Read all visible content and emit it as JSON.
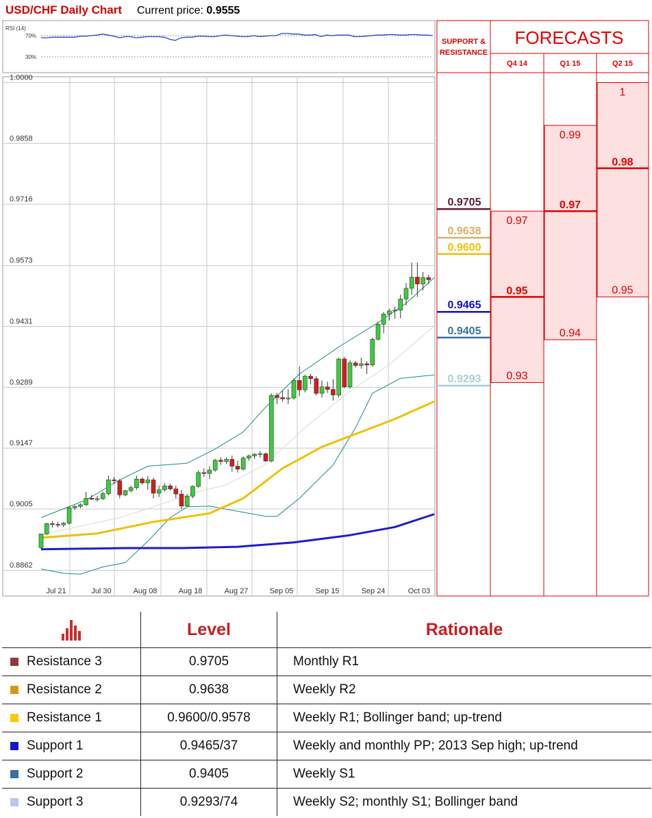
{
  "header": {
    "title": "USD/CHF Daily Chart",
    "current_label": "Current price:",
    "current_value": "0.9555"
  },
  "rsi": {
    "label": "RSI (14)",
    "upper": "70%",
    "lower": "30%",
    "values": [
      66,
      66,
      67,
      67,
      67,
      67,
      67,
      69,
      69,
      70,
      71,
      73,
      71,
      69,
      66,
      68,
      68,
      66,
      67,
      68,
      68,
      68,
      67,
      63,
      61,
      66,
      67,
      67,
      69,
      69,
      68,
      68,
      70,
      71,
      70,
      69,
      68,
      68,
      70,
      68,
      69,
      70,
      70,
      74,
      74,
      73,
      73,
      71,
      71,
      72,
      68,
      71,
      70,
      71,
      71,
      71,
      68,
      68,
      69,
      70,
      71,
      71,
      72,
      72,
      71,
      71,
      72,
      72,
      71,
      71,
      70
    ]
  },
  "chart_data": {
    "type": "candlestick",
    "title": "USD/CHF Daily Chart",
    "y_ticks": [
      1.0,
      0.9858,
      0.9716,
      0.9573,
      0.9431,
      0.9289,
      0.9147,
      0.9005,
      0.8862
    ],
    "y_tick_labels": [
      "1.0000",
      "0.9858",
      "0.9716",
      "0.9573",
      "0.9431",
      "0.9289",
      "0.9147",
      "0.9005",
      "0.8862"
    ],
    "ylim": [
      0.8862,
      1.0
    ],
    "x_labels": [
      "Jul 21",
      "Jul 30",
      "Aug 08",
      "Aug 18",
      "Aug 27",
      "Sep 05",
      "Sep 15",
      "Sep 24",
      "Oct 03"
    ],
    "candles": [
      [
        0.8915,
        0.8947,
        0.8912,
        0.8947
      ],
      [
        0.8947,
        0.8973,
        0.8944,
        0.8971
      ],
      [
        0.8971,
        0.8977,
        0.8962,
        0.8969
      ],
      [
        0.8969,
        0.8975,
        0.8962,
        0.8968
      ],
      [
        0.8968,
        0.8975,
        0.8963,
        0.8972
      ],
      [
        0.8972,
        0.9011,
        0.8969,
        0.9008
      ],
      [
        0.9008,
        0.9014,
        0.9003,
        0.9011
      ],
      [
        0.9011,
        0.9018,
        0.9007,
        0.9015
      ],
      [
        0.9015,
        0.9045,
        0.9012,
        0.903
      ],
      [
        0.903,
        0.9038,
        0.9026,
        0.9028
      ],
      [
        0.9028,
        0.9036,
        0.9022,
        0.9029
      ],
      [
        0.9029,
        0.9046,
        0.9026,
        0.9041
      ],
      [
        0.9041,
        0.9083,
        0.9037,
        0.9073
      ],
      [
        0.9073,
        0.908,
        0.9063,
        0.9071
      ],
      [
        0.9071,
        0.9075,
        0.903,
        0.9038
      ],
      [
        0.9038,
        0.905,
        0.9035,
        0.9048
      ],
      [
        0.9048,
        0.906,
        0.9044,
        0.9055
      ],
      [
        0.9055,
        0.9083,
        0.905,
        0.9075
      ],
      [
        0.9075,
        0.9079,
        0.9062,
        0.9066
      ],
      [
        0.9066,
        0.9082,
        0.905,
        0.9073
      ],
      [
        0.9073,
        0.9078,
        0.903,
        0.9042
      ],
      [
        0.9042,
        0.906,
        0.9033,
        0.905
      ],
      [
        0.905,
        0.9065,
        0.9046,
        0.9059
      ],
      [
        0.9059,
        0.9064,
        0.9048,
        0.9052
      ],
      [
        0.9052,
        0.906,
        0.903,
        0.904
      ],
      [
        0.904,
        0.905,
        0.9005,
        0.9012
      ],
      [
        0.9012,
        0.904,
        0.901,
        0.9035
      ],
      [
        0.9035,
        0.906,
        0.903,
        0.9058
      ],
      [
        0.9058,
        0.9095,
        0.9054,
        0.909
      ],
      [
        0.909,
        0.91,
        0.908,
        0.9088
      ],
      [
        0.9088,
        0.9105,
        0.9075,
        0.9096
      ],
      [
        0.9096,
        0.9122,
        0.9092,
        0.9119
      ],
      [
        0.9119,
        0.9126,
        0.9108,
        0.9116
      ],
      [
        0.9116,
        0.9125,
        0.911,
        0.9121
      ],
      [
        0.9121,
        0.913,
        0.9092,
        0.9105
      ],
      [
        0.9105,
        0.9118,
        0.909,
        0.9098
      ],
      [
        0.9098,
        0.9128,
        0.9095,
        0.9124
      ],
      [
        0.9124,
        0.9132,
        0.9118,
        0.9129
      ],
      [
        0.9129,
        0.9135,
        0.9122,
        0.9133
      ],
      [
        0.9133,
        0.914,
        0.9125,
        0.9134
      ],
      [
        0.9134,
        0.9137,
        0.9115,
        0.9117
      ],
      [
        0.9117,
        0.9275,
        0.9114,
        0.927
      ],
      [
        0.927,
        0.9276,
        0.925,
        0.9265
      ],
      [
        0.9265,
        0.9282,
        0.9255,
        0.9262
      ],
      [
        0.9262,
        0.9285,
        0.925,
        0.9264
      ],
      [
        0.9264,
        0.931,
        0.926,
        0.9305
      ],
      [
        0.9305,
        0.9338,
        0.9268,
        0.9283
      ],
      [
        0.9283,
        0.9318,
        0.9277,
        0.9315
      ],
      [
        0.9315,
        0.932,
        0.9296,
        0.9309
      ],
      [
        0.9309,
        0.9315,
        0.927,
        0.9275
      ],
      [
        0.9275,
        0.9305,
        0.9265,
        0.929
      ],
      [
        0.929,
        0.9302,
        0.9276,
        0.9284
      ],
      [
        0.9284,
        0.9308,
        0.9258,
        0.9271
      ],
      [
        0.9271,
        0.9358,
        0.9265,
        0.9355
      ],
      [
        0.9355,
        0.936,
        0.9287,
        0.929
      ],
      [
        0.929,
        0.9352,
        0.9286,
        0.9346
      ],
      [
        0.9346,
        0.9351,
        0.9335,
        0.934
      ],
      [
        0.934,
        0.9358,
        0.9333,
        0.9344
      ],
      [
        0.9344,
        0.935,
        0.932,
        0.9341
      ],
      [
        0.9341,
        0.9405,
        0.9337,
        0.9401
      ],
      [
        0.9401,
        0.9442,
        0.9398,
        0.9436
      ],
      [
        0.9436,
        0.9465,
        0.9415,
        0.946
      ],
      [
        0.946,
        0.9472,
        0.9445,
        0.9467
      ],
      [
        0.9467,
        0.9477,
        0.9449,
        0.9469
      ],
      [
        0.9469,
        0.9505,
        0.945,
        0.9495
      ],
      [
        0.9495,
        0.9532,
        0.948,
        0.952
      ],
      [
        0.952,
        0.958,
        0.9505,
        0.9546
      ],
      [
        0.9546,
        0.958,
        0.95,
        0.953
      ],
      [
        0.953,
        0.9558,
        0.9515,
        0.9545
      ],
      [
        0.9545,
        0.9552,
        0.953,
        0.954
      ]
    ],
    "bollinger_upper": [
      [
        0,
        0.8985
      ],
      [
        8,
        0.9026
      ],
      [
        14,
        0.9073
      ],
      [
        19,
        0.9105
      ],
      [
        26,
        0.9112
      ],
      [
        31,
        0.9145
      ],
      [
        36,
        0.9185
      ],
      [
        40,
        0.9243
      ],
      [
        46,
        0.932
      ],
      [
        53,
        0.9383
      ],
      [
        60,
        0.944
      ],
      [
        65,
        0.9485
      ],
      [
        70,
        0.9545
      ]
    ],
    "bollinger_middle": [
      [
        0,
        0.8945
      ],
      [
        8,
        0.8968
      ],
      [
        14,
        0.8985
      ],
      [
        20,
        0.901
      ],
      [
        27,
        0.9042
      ],
      [
        33,
        0.9062
      ],
      [
        40,
        0.911
      ],
      [
        47,
        0.9195
      ],
      [
        55,
        0.928
      ],
      [
        62,
        0.9342
      ],
      [
        70,
        0.9432
      ]
    ],
    "bollinger_lower": [
      [
        0,
        0.8865
      ],
      [
        4,
        0.8855
      ],
      [
        7,
        0.8853
      ],
      [
        11,
        0.887
      ],
      [
        15,
        0.888
      ],
      [
        19,
        0.893
      ],
      [
        23,
        0.8985
      ],
      [
        26,
        0.901
      ],
      [
        30,
        0.9012
      ],
      [
        35,
        0.9
      ],
      [
        40,
        0.8988
      ],
      [
        42,
        0.8988
      ],
      [
        46,
        0.903
      ],
      [
        52,
        0.9108
      ],
      [
        56,
        0.9195
      ],
      [
        59,
        0.9275
      ],
      [
        64,
        0.931
      ],
      [
        70,
        0.9318
      ]
    ],
    "sma_yellow": [
      [
        0,
        0.8938
      ],
      [
        10,
        0.8948
      ],
      [
        20,
        0.8975
      ],
      [
        30,
        0.8995
      ],
      [
        36,
        0.903
      ],
      [
        43,
        0.91
      ],
      [
        50,
        0.915
      ],
      [
        56,
        0.918
      ],
      [
        63,
        0.9215
      ],
      [
        70,
        0.9256
      ]
    ],
    "sma_blue": [
      [
        0,
        0.8911
      ],
      [
        15,
        0.8914
      ],
      [
        25,
        0.8914
      ],
      [
        35,
        0.8917
      ],
      [
        45,
        0.8927
      ],
      [
        55,
        0.8944
      ],
      [
        63,
        0.8963
      ],
      [
        70,
        0.8993
      ]
    ],
    "support_resistance": [
      {
        "label": "0.9705",
        "value": 0.9705,
        "color": "#5a1a36"
      },
      {
        "label": "0.9638",
        "value": 0.9638,
        "color": "#d4b06a"
      },
      {
        "label": "0.9600",
        "value": 0.96,
        "color": "#f0c000"
      },
      {
        "label": "0.9465",
        "value": 0.9465,
        "color": "#1010c8"
      },
      {
        "label": "0.9405",
        "value": 0.9405,
        "color": "#3a72a0"
      },
      {
        "label": "0.9293",
        "value": 0.9293,
        "color": "#a8cfd6"
      }
    ],
    "forecasts": {
      "title": "FORECASTS",
      "sr_header": "SUPPORT & RESISTANCE",
      "columns": [
        {
          "label": "Q4 14",
          "high": "0.97",
          "high_value": 0.97,
          "mid": "0.95",
          "mid_value": 0.95,
          "low": "0.93",
          "low_value": 0.93
        },
        {
          "label": "Q1 15",
          "high": "0.99",
          "high_value": 0.99,
          "mid": "0.97",
          "mid_value": 0.97,
          "low": "0.94",
          "low_value": 0.94
        },
        {
          "label": "Q2 15",
          "high": "1",
          "high_value": 1.0,
          "mid": "0.98",
          "mid_value": 0.98,
          "low": "0.95",
          "low_value": 0.95
        }
      ]
    }
  },
  "levels_table": {
    "headers": {
      "level": "Level",
      "rationale": "Rationale"
    },
    "icon": "bar-chart-icon",
    "rows": [
      {
        "name": "Resistance 3",
        "color": "#943838",
        "level": "0.9705",
        "rationale": "Monthly R1"
      },
      {
        "name": "Resistance 2",
        "color": "#d39b14",
        "level": "0.9638",
        "rationale": "Weekly R2"
      },
      {
        "name": "Resistance 1",
        "color": "#ffc800",
        "level": "0.9600/0.9578",
        "rationale": "Weekly R1; Bollinger band; up-trend"
      },
      {
        "name": "Support 1",
        "color": "#1414d2",
        "level": "0.9465/37",
        "rationale": "Weekly and monthly PP; 2013 Sep high; up-trend"
      },
      {
        "name": "Support 2",
        "color": "#3d6fa6",
        "level": "0.9405",
        "rationale": "Weekly S1"
      },
      {
        "name": "Support 3",
        "color": "#b7cbe4",
        "level": "0.9293/74",
        "rationale": "Weekly S2; monthly S1; Bollinger band"
      }
    ]
  }
}
